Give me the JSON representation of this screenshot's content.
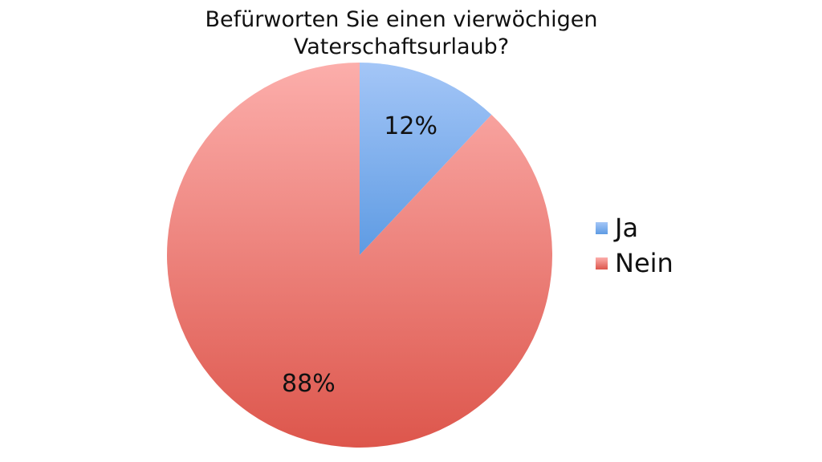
{
  "chart_data": {
    "type": "pie",
    "title_lines": [
      "Befürworten Sie einen vierwöchigen",
      "Vaterschaftsurlaub?"
    ],
    "categories": [
      "Ja",
      "Nein"
    ],
    "values": [
      12,
      88
    ],
    "labels": [
      "12%",
      "88%"
    ],
    "colors": [
      {
        "light": "#a4c6f7",
        "dark": "#5e9be3"
      },
      {
        "light": "#fcaeab",
        "dark": "#dd564c"
      }
    ],
    "legend_position": "right"
  }
}
